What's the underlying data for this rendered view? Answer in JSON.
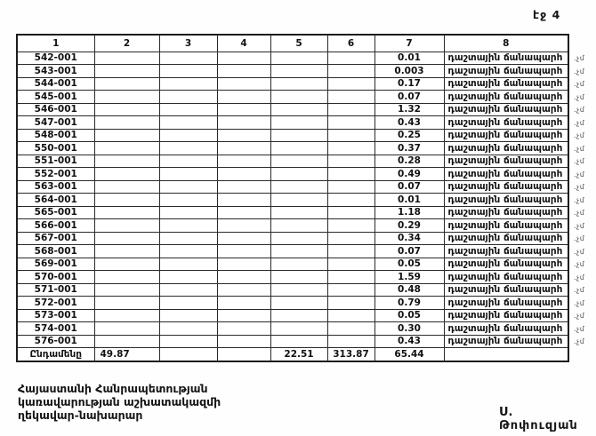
{
  "page_label": "էջ 4",
  "colors": {
    "ink": "#141414",
    "paper": "#ffffff"
  },
  "table": {
    "headers": [
      "1",
      "2",
      "3",
      "4",
      "5",
      "6",
      "7",
      "8"
    ],
    "land_use_label": "դաշտային ճանապարհ",
    "margin_note": ".չմ",
    "rows": [
      {
        "id": "542-001",
        "col7": "0.01",
        "col8": "դաշտային ճանապարհ",
        "note": ".չմ"
      },
      {
        "id": "543-001",
        "col7": "0.003",
        "col8": "դաշտային ճանապարհ",
        "note": ".չմ"
      },
      {
        "id": "544-001",
        "col7": "0.17",
        "col8": "դաշտային ճանապարհ",
        "note": ".չմ"
      },
      {
        "id": "545-001",
        "col7": "0.07",
        "col8": "դաշտային ճանապարհ",
        "note": ".չմ"
      },
      {
        "id": "546-001",
        "col7": "1.32",
        "col8": "դաշտային ճանապարհ",
        "note": ".չմ"
      },
      {
        "id": "547-001",
        "col7": "0.43",
        "col8": "դաշտային ճանապարհ",
        "note": ".չմ"
      },
      {
        "id": "548-001",
        "col7": "0.25",
        "col8": "դաշտային ճանապարհ",
        "note": ".չմ"
      },
      {
        "id": "550-001",
        "col7": "0.37",
        "col8": "դաշտային ճանապարհ",
        "note": ".չմ"
      },
      {
        "id": "551-001",
        "col7": "0.28",
        "col8": "դաշտային ճանապարհ",
        "note": ".չմ"
      },
      {
        "id": "552-001",
        "col7": "0.49",
        "col8": "դաշտային ճանապարհ",
        "note": ".չմ"
      },
      {
        "id": "563-001",
        "col7": "0.07",
        "col8": "դաշտային ճանապարհ",
        "note": ".չմ"
      },
      {
        "id": "564-001",
        "col7": "0.01",
        "col8": "դաշտային ճանապարհ",
        "note": ".չմ"
      },
      {
        "id": "565-001",
        "col7": "1.18",
        "col8": "դաշտային ճանապարհ",
        "note": ".չմ"
      },
      {
        "id": "566-001",
        "col7": "0.29",
        "col8": "դաշտային ճանապարհ",
        "note": ".չմ"
      },
      {
        "id": "567-001",
        "col7": "0.34",
        "col8": "դաշտային ճանապարհ",
        "note": ".չմ"
      },
      {
        "id": "568-001",
        "col7": "0.07",
        "col8": "դաշտային ճանապարհ",
        "note": ".չմ"
      },
      {
        "id": "569-001",
        "col7": "0.05",
        "col8": "դաշտային ճանապարհ",
        "note": ".չմ"
      },
      {
        "id": "570-001",
        "col7": "1.59",
        "col8": "դաշտային ճանապարհ",
        "note": ".չմ"
      },
      {
        "id": "571-001",
        "col7": "0.48",
        "col8": "դաշտային ճանապարհ",
        "note": ".չմ"
      },
      {
        "id": "572-001",
        "col7": "0.79",
        "col8": "դաշտային ճանապարհ",
        "note": ".չմ"
      },
      {
        "id": "573-001",
        "col7": "0.05",
        "col8": "դաշտային ճանապարհ",
        "note": ".չմ"
      },
      {
        "id": "574-001",
        "col7": "0.30",
        "col8": "դաշտային ճանապարհ",
        "note": ".չմ"
      },
      {
        "id": "576-001",
        "col7": "0.43",
        "col8": "դաշտային ճանապարհ",
        "note": ".չմ"
      }
    ],
    "total_row": {
      "label": "Ընդամենը",
      "col2": "49.87",
      "col3": "",
      "col4": "",
      "col5": "22.51",
      "col6": "313.87",
      "col7": "65.44",
      "col8": ""
    }
  },
  "footer": {
    "left_lines": [
      "Հայաստանի Հանրապետության",
      "կառավարության աշխատակազմի",
      "ղեկավար-նախարար"
    ],
    "signature_name": "Ս. Թոփուզյան"
  }
}
